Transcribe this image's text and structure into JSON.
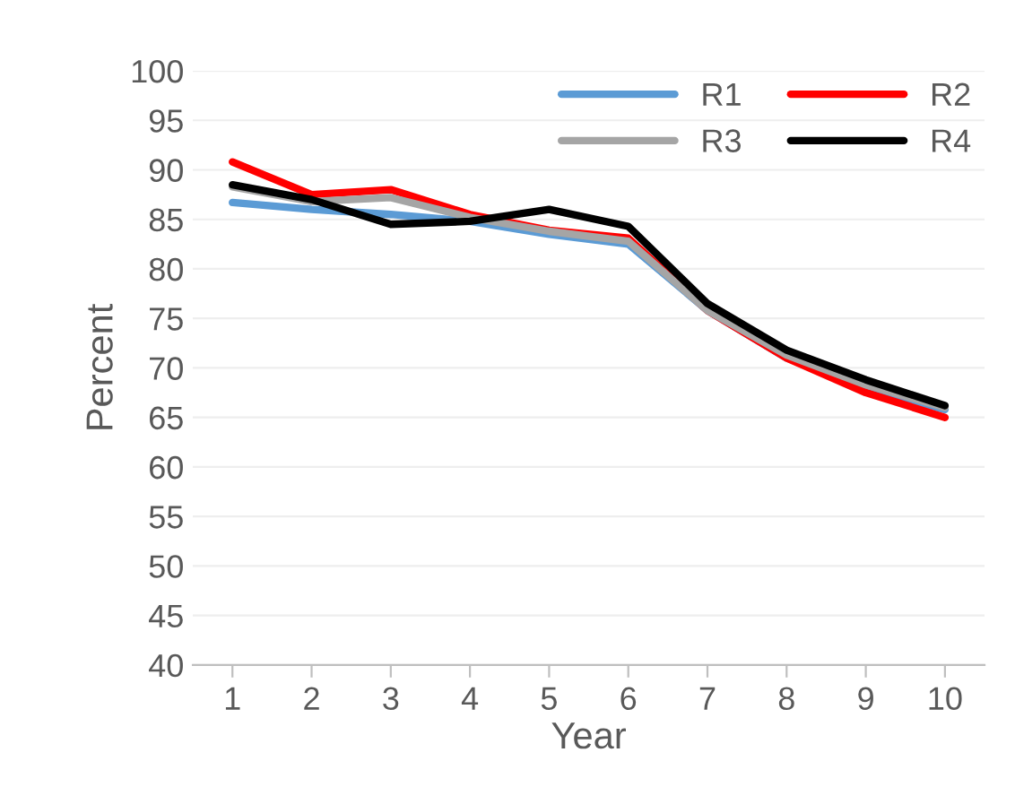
{
  "chart_data": {
    "type": "line",
    "xlabel": "Year",
    "ylabel": "Percent",
    "categories": [
      "1",
      "2",
      "3",
      "4",
      "5",
      "6",
      "7",
      "8",
      "9",
      "10"
    ],
    "series": [
      {
        "name": "R1",
        "color": "#5b9bd5",
        "values": [
          86.7,
          86,
          85.5,
          84.8,
          83.5,
          82.5,
          75.8,
          71,
          68,
          65.8
        ]
      },
      {
        "name": "R2",
        "color": "#ff0000",
        "values": [
          90.8,
          87.5,
          88,
          85.5,
          83.9,
          83.1,
          75.8,
          71,
          67.5,
          65
        ]
      },
      {
        "name": "R3",
        "color": "#a5a5a5",
        "values": [
          88.3,
          86.8,
          87.2,
          85.2,
          83.8,
          82.8,
          75.8,
          71.3,
          68.3,
          66
        ]
      },
      {
        "name": "R4",
        "color": "#000000",
        "values": [
          88.5,
          87,
          84.5,
          84.8,
          86,
          84.3,
          76.5,
          71.8,
          68.8,
          66.2
        ]
      }
    ],
    "ylim": [
      40,
      100
    ],
    "yticks": [
      40,
      45,
      50,
      55,
      60,
      65,
      70,
      75,
      80,
      85,
      90,
      95,
      100
    ],
    "grid": "y",
    "legend": "top right",
    "marker": "none",
    "line_style": "solid"
  }
}
